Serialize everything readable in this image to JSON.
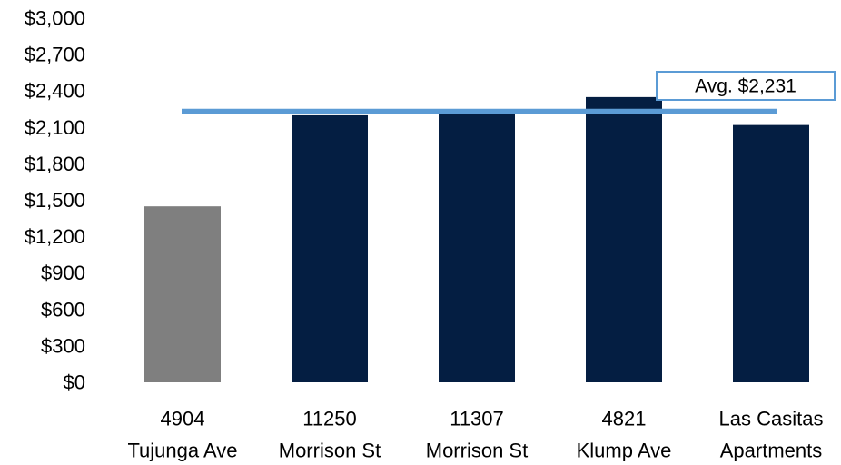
{
  "chart_data": {
    "type": "bar",
    "categories": [
      [
        "4904",
        "Tujunga Ave"
      ],
      [
        "11250",
        "Morrison St"
      ],
      [
        "11307",
        "Morrison St"
      ],
      [
        "4821",
        "Klump Ave"
      ],
      [
        "Las Casitas",
        "Apartments"
      ]
    ],
    "values": [
      1450,
      2200,
      2220,
      2350,
      2120
    ],
    "bar_colors": [
      "#7f7f7f",
      "#041e42",
      "#041e42",
      "#041e42",
      "#041e42"
    ],
    "ylim": [
      0,
      3000
    ],
    "ytick_step": 300,
    "ytick_labels": [
      "$0",
      "$300",
      "$600",
      "$900",
      "$1,200",
      "$1,500",
      "$1,800",
      "$2,100",
      "$2,400",
      "$2,700",
      "$3,000"
    ],
    "average": {
      "value": 2231,
      "label": "Avg. $2,231",
      "line_color": "#5b9bd5",
      "box_border_color": "#5b9bd5"
    },
    "grid": false,
    "legend": "none"
  }
}
